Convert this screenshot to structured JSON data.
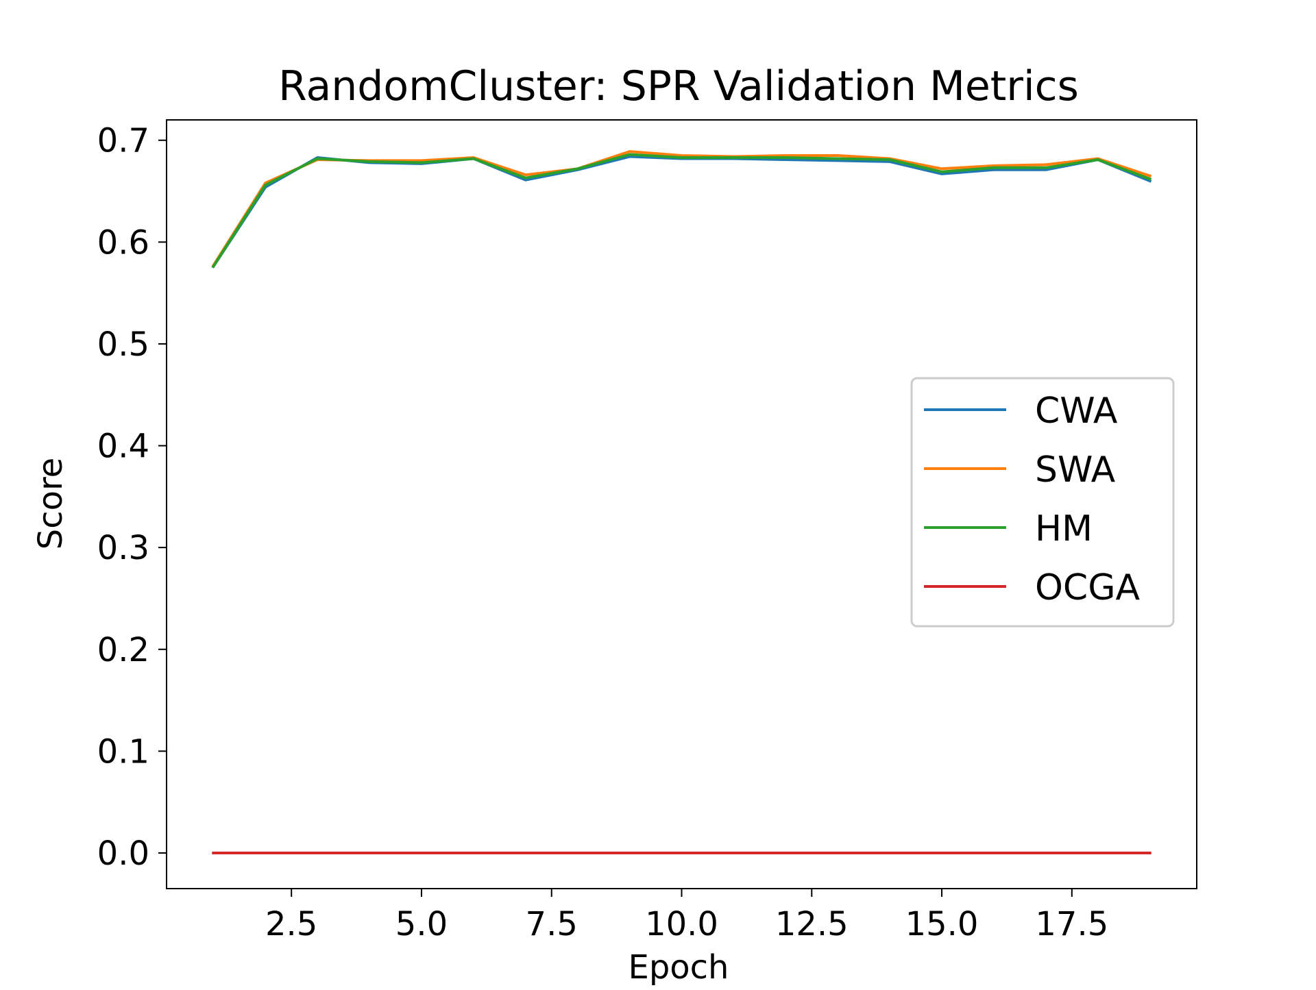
{
  "chart_data": {
    "type": "line",
    "title": "RandomCluster: SPR Validation Metrics",
    "xlabel": "Epoch",
    "ylabel": "Score",
    "xlim": [
      0.1,
      19.9
    ],
    "ylim": [
      -0.035,
      0.72
    ],
    "xticks": [
      2.5,
      5.0,
      7.5,
      10.0,
      12.5,
      15.0,
      17.5
    ],
    "xtick_labels": [
      "2.5",
      "5.0",
      "7.5",
      "10.0",
      "12.5",
      "15.0",
      "17.5"
    ],
    "yticks": [
      0.0,
      0.1,
      0.2,
      0.3,
      0.4,
      0.5,
      0.6,
      0.7
    ],
    "ytick_labels": [
      "0.0",
      "0.1",
      "0.2",
      "0.3",
      "0.4",
      "0.5",
      "0.6",
      "0.7"
    ],
    "grid": false,
    "legend_position": "center-right",
    "x": [
      1,
      2,
      3,
      4,
      5,
      6,
      7,
      8,
      9,
      10,
      11,
      12,
      13,
      14,
      15,
      16,
      17,
      18,
      19
    ],
    "series": [
      {
        "name": "CWA",
        "color": "#1f77b4",
        "values": [
          0.576,
          0.654,
          0.683,
          0.678,
          0.677,
          0.682,
          0.661,
          0.671,
          0.684,
          0.682,
          0.682,
          0.681,
          0.68,
          0.679,
          0.667,
          0.671,
          0.671,
          0.681,
          0.66
        ]
      },
      {
        "name": "SWA",
        "color": "#ff7f0e",
        "values": [
          0.577,
          0.658,
          0.681,
          0.68,
          0.68,
          0.683,
          0.666,
          0.672,
          0.689,
          0.685,
          0.684,
          0.685,
          0.685,
          0.682,
          0.672,
          0.675,
          0.676,
          0.682,
          0.665
        ]
      },
      {
        "name": "HM",
        "color": "#2ca02c",
        "values": [
          0.576,
          0.656,
          0.682,
          0.679,
          0.678,
          0.682,
          0.663,
          0.672,
          0.686,
          0.683,
          0.683,
          0.683,
          0.682,
          0.681,
          0.669,
          0.673,
          0.673,
          0.681,
          0.662
        ]
      },
      {
        "name": "OCGA",
        "color": "#d62728",
        "values": [
          0,
          0,
          0,
          0,
          0,
          0,
          0,
          0,
          0,
          0,
          0,
          0,
          0,
          0,
          0,
          0,
          0,
          0,
          0
        ]
      }
    ]
  }
}
